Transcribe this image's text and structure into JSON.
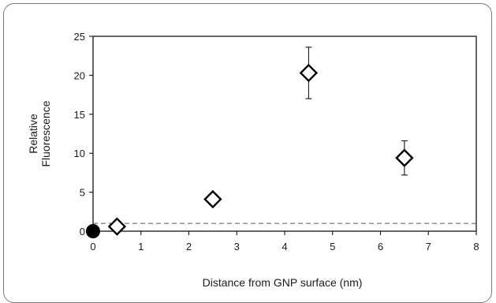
{
  "chart_data": {
    "type": "scatter",
    "title": "",
    "xlabel": "Distance from GNP surface (nm)",
    "ylabel": [
      "Relative",
      "Fluorescence"
    ],
    "xlim": [
      0,
      8
    ],
    "ylim": [
      0,
      25
    ],
    "xticks": [
      0,
      1,
      2,
      3,
      4,
      5,
      6,
      7,
      8
    ],
    "yticks": [
      0,
      5,
      10,
      15,
      20,
      25
    ],
    "grid": false,
    "reference_line": {
      "y": 1,
      "style": "dashed"
    },
    "series": [
      {
        "marker": "circle-filled",
        "points": [
          {
            "x": 0,
            "y": 0
          }
        ]
      },
      {
        "marker": "diamond-open",
        "points": [
          {
            "x": 0.5,
            "y": 0.6,
            "err": 0
          },
          {
            "x": 2.5,
            "y": 4.1,
            "err": 0
          },
          {
            "x": 4.5,
            "y": 20.3,
            "err": 3.3
          },
          {
            "x": 6.5,
            "y": 9.4,
            "err": 2.2
          }
        ]
      }
    ],
    "colors": {
      "marker": "#000000",
      "axis": "#000000",
      "reference": "#555555"
    }
  }
}
